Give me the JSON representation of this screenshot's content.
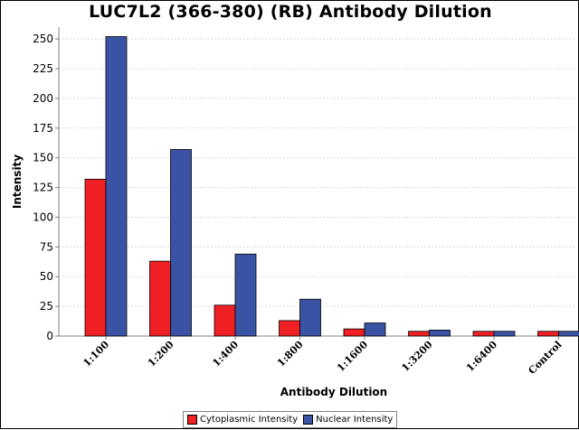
{
  "chart_data": {
    "type": "bar",
    "title": "LUC7L2 (366-380) (RB) Antibody Dilution",
    "xlabel": "Antibody Dilution",
    "ylabel": "Intensity",
    "categories": [
      "1:100",
      "1:200",
      "1:400",
      "1:800",
      "1:1600",
      "1:3200",
      "1:6400",
      "Control"
    ],
    "series": [
      {
        "name": "Cytoplasmic Intensity",
        "color": "#ee2024",
        "values": [
          132,
          63,
          26,
          13,
          6,
          4,
          4,
          4
        ]
      },
      {
        "name": "Nuclear Intensity",
        "color": "#3a53a4",
        "values": [
          252,
          157,
          69,
          31,
          11,
          5,
          4,
          4
        ]
      }
    ],
    "ylim": [
      0,
      260
    ],
    "yticks": [
      0,
      25,
      50,
      75,
      100,
      125,
      150,
      175,
      200,
      225,
      250
    ],
    "grid": true,
    "legend": "bottom"
  }
}
